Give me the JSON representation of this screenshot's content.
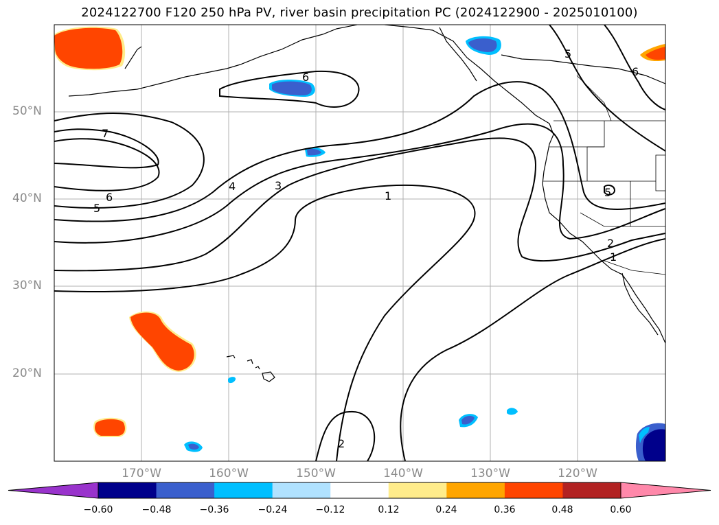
{
  "title": "2024122700 F120 250 hPa PV, river basin precipitation PC (2024122900 - 2025010100)",
  "map": {
    "projection": "plate-carree",
    "extent": {
      "lon_min": -180,
      "lon_max": -110,
      "lat_min": 10,
      "lat_max": 60
    },
    "gridlines": true,
    "lat_labels": [
      "50°N",
      "40°N",
      "30°N",
      "20°N"
    ],
    "lon_labels": [
      "170°W",
      "160°W",
      "150°W",
      "140°W",
      "130°W",
      "120°W"
    ],
    "contour_labels": [
      "7",
      "6",
      "5",
      "4",
      "3",
      "1",
      "6",
      "5",
      "6",
      "5",
      "2",
      "1",
      "2"
    ]
  },
  "colorbar": {
    "extend": "both",
    "colors": [
      "#9933cc",
      "#00008b",
      "#3a5fcd",
      "#00bfff",
      "#b0e2ff",
      "#ffffff",
      "#ffec8b",
      "#ffa500",
      "#ff4500",
      "#b22222",
      "#ff88aa"
    ],
    "ticks": [
      "−0.60",
      "−0.48",
      "−0.36",
      "−0.24",
      "−0.12",
      "0.12",
      "0.24",
      "0.36",
      "0.48",
      "0.60"
    ]
  }
}
